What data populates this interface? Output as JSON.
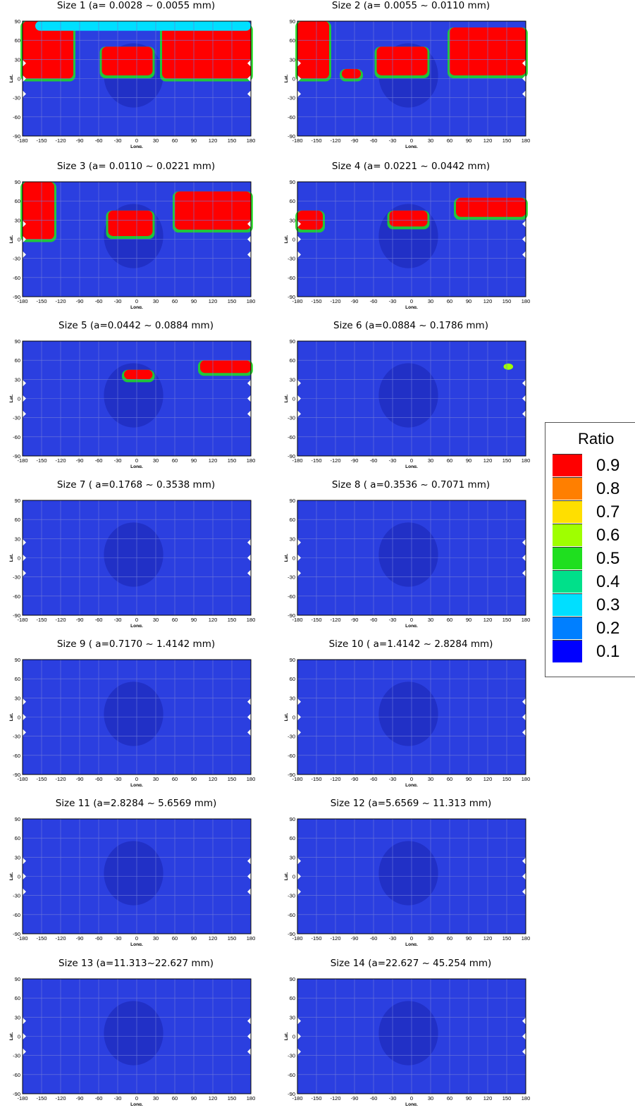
{
  "chart_data": {
    "type": "heatmap",
    "grid": true,
    "legend_position": "right",
    "xlabel": "Long.",
    "ylabel": "Lat.",
    "xlim": [
      -180,
      180
    ],
    "ylim": [
      -90,
      90
    ],
    "x_ticks": [
      "-180",
      "-150",
      "-120",
      "-90",
      "-60",
      "-30",
      "0",
      "30",
      "60",
      "90",
      "120",
      "150",
      "180"
    ],
    "y_ticks": [
      "90",
      "60",
      "30",
      "0",
      "-30",
      "-60",
      "-90"
    ],
    "colors": {
      "background": "#2b3fe0",
      "background_dark": "#1a25b0",
      "grid": "#6f7ad8",
      "notch": "#ffffff"
    },
    "colorbar": {
      "title": "Ratio",
      "levels": [
        {
          "value": 0.9,
          "label": "0.9",
          "color": "#ff0000"
        },
        {
          "value": 0.8,
          "label": "0.8",
          "color": "#ff7f00"
        },
        {
          "value": 0.7,
          "label": "0.7",
          "color": "#ffdf00"
        },
        {
          "value": 0.6,
          "label": "0.6",
          "color": "#9fff00"
        },
        {
          "value": 0.5,
          "label": "0.5",
          "color": "#1fdf1f"
        },
        {
          "value": 0.4,
          "label": "0.4",
          "color": "#00e08a"
        },
        {
          "value": 0.3,
          "label": "0.3",
          "color": "#00dfff"
        },
        {
          "value": 0.2,
          "label": "0.2",
          "color": "#007fff"
        },
        {
          "value": 0.1,
          "label": "0.1",
          "color": "#0000ff"
        }
      ]
    },
    "panels": [
      {
        "title": "Size 1 (a= 0.0028 ~ 0.0055 mm)",
        "high_ratio_regions": [
          {
            "lon": [
              -180,
              -100
            ],
            "lat": [
              0,
              90
            ],
            "ratio": 0.9
          },
          {
            "lon": [
              -55,
              25
            ],
            "lat": [
              5,
              50
            ],
            "ratio": 0.9
          },
          {
            "lon": [
              40,
              180
            ],
            "lat": [
              0,
              85
            ],
            "ratio": 0.9
          },
          {
            "lon": [
              -160,
              180
            ],
            "lat": [
              75,
              90
            ],
            "ratio": 0.3
          }
        ]
      },
      {
        "title": "Size 2 (a= 0.0055 ~ 0.0110 mm)",
        "high_ratio_regions": [
          {
            "lon": [
              -180,
              -130
            ],
            "lat": [
              0,
              90
            ],
            "ratio": 0.9
          },
          {
            "lon": [
              -110,
              -80
            ],
            "lat": [
              0,
              15
            ],
            "ratio": 0.9
          },
          {
            "lon": [
              -55,
              25
            ],
            "lat": [
              5,
              50
            ],
            "ratio": 0.9
          },
          {
            "lon": [
              60,
              180
            ],
            "lat": [
              5,
              80
            ],
            "ratio": 0.9
          }
        ]
      },
      {
        "title": "Size 3 (a= 0.0110 ~ 0.0221 mm)",
        "high_ratio_regions": [
          {
            "lon": [
              -180,
              -130
            ],
            "lat": [
              0,
              90
            ],
            "ratio": 0.9
          },
          {
            "lon": [
              -45,
              25
            ],
            "lat": [
              5,
              45
            ],
            "ratio": 0.9
          },
          {
            "lon": [
              60,
              180
            ],
            "lat": [
              15,
              75
            ],
            "ratio": 0.9
          }
        ]
      },
      {
        "title": "Size 4 (a= 0.0221 ~ 0.0442 mm)",
        "high_ratio_regions": [
          {
            "lon": [
              -180,
              -140
            ],
            "lat": [
              15,
              45
            ],
            "ratio": 0.9
          },
          {
            "lon": [
              -35,
              25
            ],
            "lat": [
              20,
              45
            ],
            "ratio": 0.9
          },
          {
            "lon": [
              70,
              180
            ],
            "lat": [
              35,
              65
            ],
            "ratio": 0.9
          }
        ]
      },
      {
        "title": "Size 5 (a=0.0442 ~ 0.0884 mm)",
        "high_ratio_regions": [
          {
            "lon": [
              -20,
              25
            ],
            "lat": [
              30,
              45
            ],
            "ratio": 0.9
          },
          {
            "lon": [
              100,
              180
            ],
            "lat": [
              40,
              60
            ],
            "ratio": 0.9
          }
        ]
      },
      {
        "title": "Size 6 (a=0.0884 ~ 0.1786 mm)",
        "high_ratio_regions": [
          {
            "lon": [
              145,
              160
            ],
            "lat": [
              45,
              55
            ],
            "ratio": 0.6
          }
        ]
      },
      {
        "title": "Size 7 ( a=0.1768 ~ 0.3538 mm)",
        "high_ratio_regions": []
      },
      {
        "title": "Size 8 ( a=0.3536 ~ 0.7071 mm)",
        "high_ratio_regions": []
      },
      {
        "title": "Size 9 ( a=0.7170 ~ 1.4142 mm)",
        "high_ratio_regions": []
      },
      {
        "title": "Size 10 ( a=1.4142 ~ 2.8284 mm)",
        "high_ratio_regions": []
      },
      {
        "title": "Size 11 (a=2.8284 ~ 5.6569 mm)",
        "high_ratio_regions": []
      },
      {
        "title": "Size 12 (a=5.6569 ~ 11.313 mm)",
        "high_ratio_regions": []
      },
      {
        "title": "Size 13 (a=11.313~22.627 mm)",
        "high_ratio_regions": []
      },
      {
        "title": "Size 14 (a=22.627 ~ 45.254 mm)",
        "high_ratio_regions": []
      }
    ]
  }
}
